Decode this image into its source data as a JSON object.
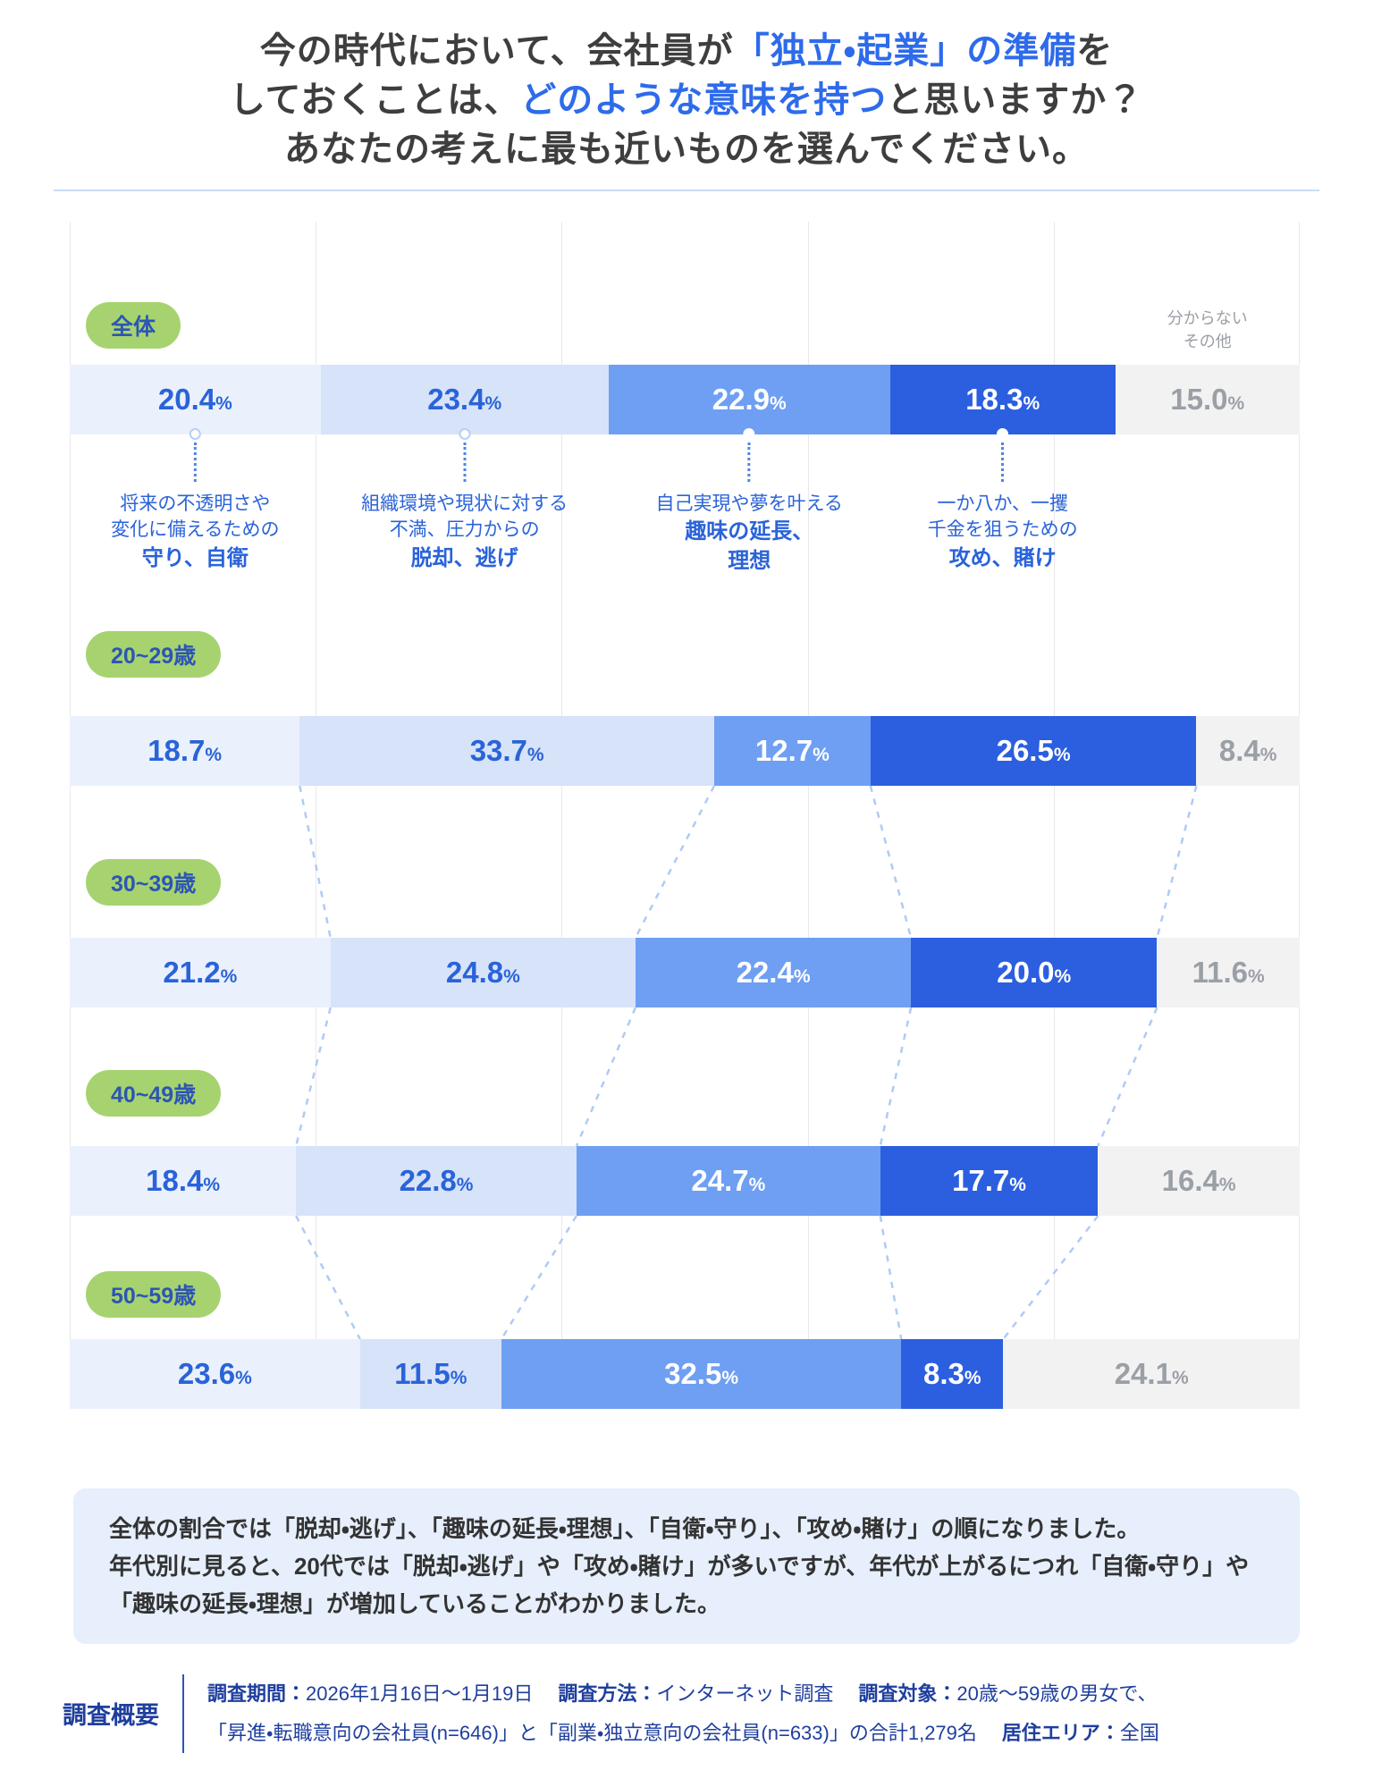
{
  "title": {
    "lines": [
      {
        "pre": "今の時代において、会社員が",
        "highlight": "「独立・起業」の準備",
        "post": "を"
      },
      {
        "pre": "しておくことは、",
        "highlight": "どのような意味を持つ",
        "post": "と思いますか？"
      },
      {
        "pre": "あなたの考えに最も近いものを選んでください。",
        "highlight": "",
        "post": ""
      }
    ]
  },
  "unknown_note": {
    "line1": "分からない",
    "line2": "その他"
  },
  "chart_data": {
    "type": "bar",
    "stacked": true,
    "orientation": "horizontal",
    "unit": "%",
    "xlim": [
      0,
      100
    ],
    "grid": "vertical lines at 20% intervals",
    "categories": [
      "全体",
      "20~29歳",
      "30~39歳",
      "40~49歳",
      "50~59歳"
    ],
    "series": [
      {
        "name": "守り、自衛",
        "color": "#EAF1FC",
        "values": [
          20.4,
          18.7,
          21.2,
          18.4,
          23.6
        ]
      },
      {
        "name": "脱却、逃げ",
        "color": "#D7E3F9",
        "values": [
          23.4,
          33.7,
          24.8,
          22.8,
          11.5
        ]
      },
      {
        "name": "趣味の延長、理想",
        "color": "#6E9FF3",
        "values": [
          22.9,
          12.7,
          22.4,
          24.7,
          32.5
        ]
      },
      {
        "name": "攻め、賭け",
        "color": "#2B5FDF",
        "values": [
          18.3,
          26.5,
          20.0,
          17.7,
          8.3
        ]
      },
      {
        "name": "分からない・その他",
        "color": "#F2F2F3",
        "values": [
          15.0,
          8.4,
          11.6,
          16.4,
          24.1
        ]
      }
    ],
    "option_labels": [
      {
        "normal_lines": [
          "将来の不透明さや",
          "変化に備えるための"
        ],
        "bold_lines": [
          "守り、自衛"
        ]
      },
      {
        "normal_lines": [
          "組織環境や現状に対する",
          "不満、圧力からの"
        ],
        "bold_lines": [
          "脱却、逃げ"
        ]
      },
      {
        "normal_lines": [
          "自己実現や夢を叶える"
        ],
        "bold_lines": [
          "趣味の延長、",
          "理想"
        ]
      },
      {
        "normal_lines": [
          "一か八か、一攫",
          "千金を狙うための"
        ],
        "bold_lines": [
          "攻め、賭け"
        ]
      }
    ]
  },
  "summary": {
    "lines": [
      "全体の割合では「脱却・逃げ」、「趣味の延長・理想」、「自衛・守り」、「攻め・賭け」の順になりました。",
      "年代別に見ると、20代では「脱却・逃げ」や「攻め・賭け」が多いですが、年代が上がるにつれ「自衛・守り」や「趣味の延長・理想」が増加していることがわかりました。"
    ]
  },
  "survey": {
    "heading": "調査概要",
    "lines": [
      [
        {
          "label": "調査期間：",
          "value": "2026年1月16日〜1月19日"
        },
        {
          "label": "調査方法：",
          "value": "インターネット調査"
        },
        {
          "label": "調査対象：",
          "value": "20歳〜59歳の男女で、"
        }
      ],
      [
        {
          "label": "",
          "value": "「昇進・転職意向の会社員(n=646)」と「副業・独立意向の会社員(n=633)」の合計1,279名"
        },
        {
          "label": "居住エリア：",
          "value": "全国"
        }
      ]
    ]
  },
  "colors": {
    "title_text": "#3E3E3E",
    "title_highlight": "#2E6BEB",
    "pct_on_light": "#2A63D9",
    "pct_on_dark": "#FFFFFF",
    "pct_on_gray": "#9B9FA6",
    "badge_bg": "#A6D36F",
    "badge_text": "#2D55B4",
    "grid_line": "#E9E9EC",
    "connector_dash": "#AFCBF4",
    "dotted_line": "#4F84E6",
    "note_gray": "#9B9FA6",
    "summary_bg": "#E6EFFB",
    "summary_text": "#333333",
    "survey_text": "#1F3F9E",
    "divider": "#CBDCF4"
  },
  "layout_hints": {
    "gap_heights": [
      155,
      170,
      155,
      138
    ],
    "badge_offsets": [
      60,
      82,
      70,
      62
    ],
    "grid_positions": [
      0,
      20,
      40,
      60,
      80,
      100
    ]
  }
}
